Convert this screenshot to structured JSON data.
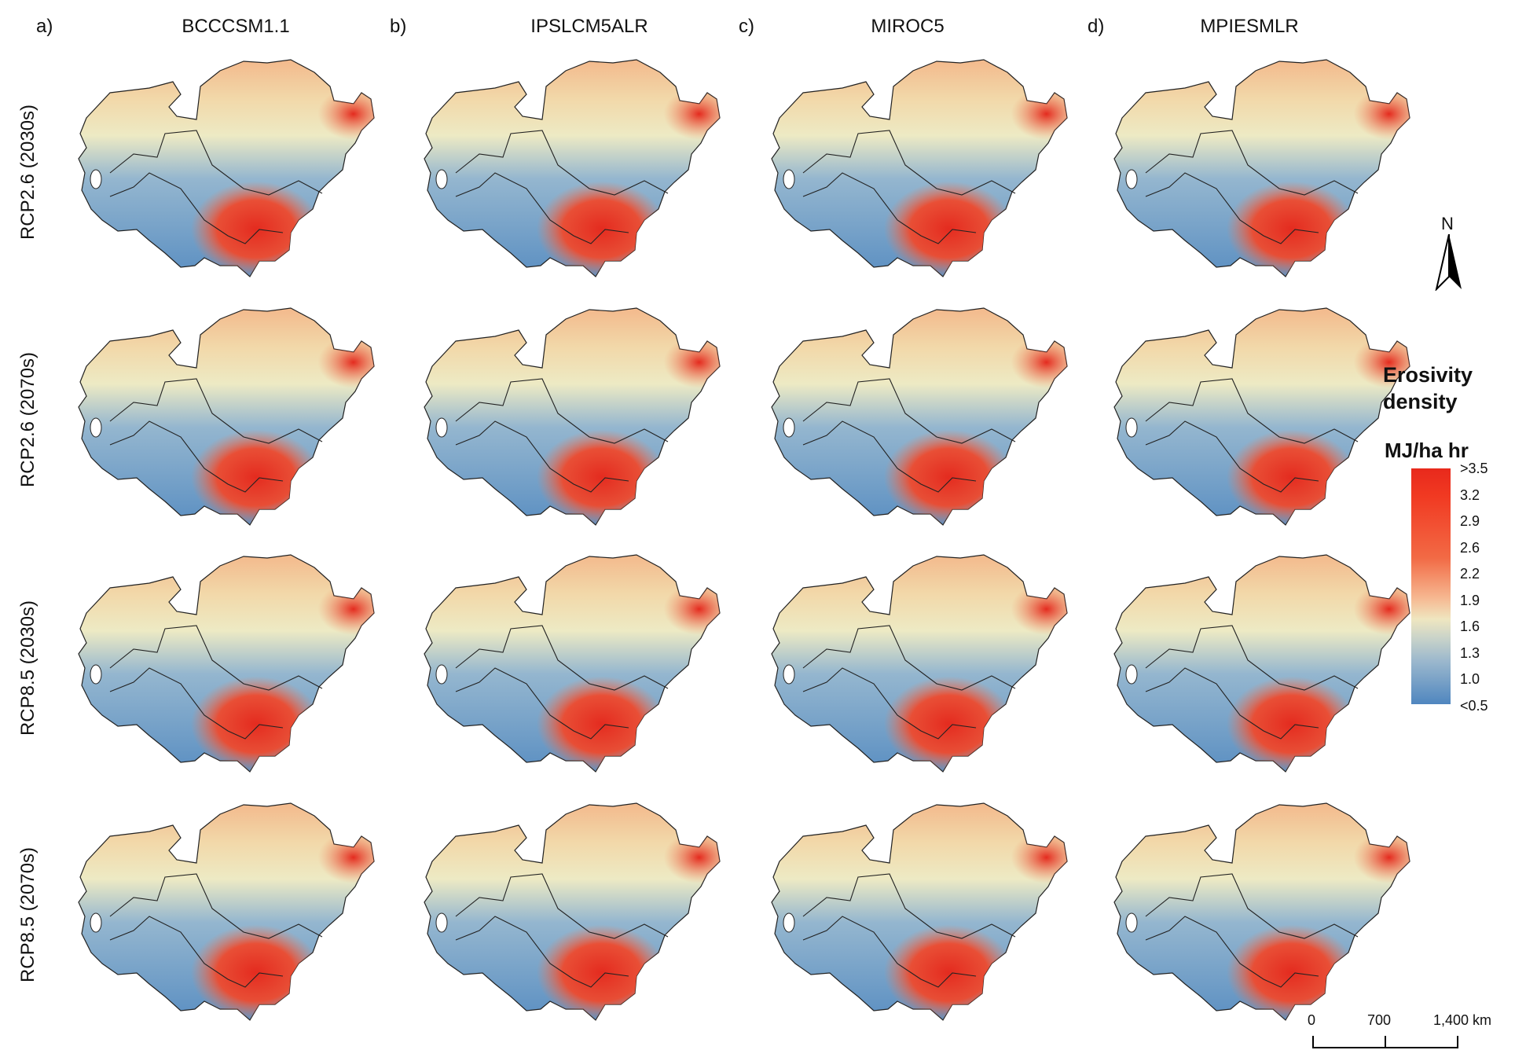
{
  "columns": [
    {
      "letter": "a)",
      "title": "BCCCSM1.1"
    },
    {
      "letter": "b)",
      "title": "IPSLCM5ALR"
    },
    {
      "letter": "c)",
      "title": "MIROC5"
    },
    {
      "letter": "d)",
      "title": "MPIESMLR"
    }
  ],
  "rows": [
    {
      "label": "RCP2.6 (2030s)"
    },
    {
      "label": "RCP2.6 (2070s)"
    },
    {
      "label": "RCP8.5 (2030s)"
    },
    {
      "label": "RCP8.5 (2070s)"
    }
  ],
  "north_arrow": {
    "label": "N"
  },
  "legend": {
    "title_line1": "Erosivity",
    "title_line2": "density",
    "unit": "MJ/ha hr",
    "ticks": [
      ">3.5",
      "3.2",
      "2.9",
      "2.6",
      "2.2",
      "1.9",
      "1.6",
      "1.3",
      "1.0",
      "<0.5"
    ],
    "colors": {
      "high": "#e8291c",
      "mid": "#efe6c0",
      "low": "#4f86bf"
    }
  },
  "scale_bar": {
    "labels": [
      "0",
      "700",
      "1,400 km"
    ]
  }
}
